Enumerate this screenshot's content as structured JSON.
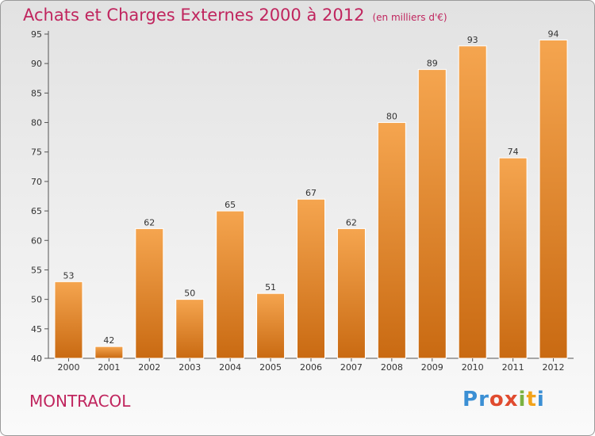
{
  "title": "Achats et Charges Externes 2000 à 2012",
  "subtitle": "(en milliers d'€)",
  "commune": "MONTRACOL",
  "logo": {
    "letters": [
      "P",
      "r",
      "o",
      "x",
      "i",
      "t",
      "i"
    ],
    "colors": [
      "#3b8fd4",
      "#3b8fd4",
      "#e04b2f",
      "#e04b2f",
      "#7bb241",
      "#f2a31b",
      "#3b8fd4"
    ]
  },
  "colors": {
    "bar_light": "#f5a54f",
    "bar_dark": "#c96a12",
    "text_accent": "#c0255e"
  },
  "chart_data": {
    "type": "bar",
    "categories": [
      "2000",
      "2001",
      "2002",
      "2003",
      "2004",
      "2005",
      "2006",
      "2007",
      "2008",
      "2009",
      "2010",
      "2011",
      "2012"
    ],
    "values": [
      53,
      42,
      62,
      50,
      65,
      51,
      67,
      62,
      80,
      89,
      93,
      74,
      94
    ],
    "ylim": [
      40,
      95
    ],
    "yticks": [
      40,
      45,
      50,
      55,
      60,
      65,
      70,
      75,
      80,
      85,
      90,
      95
    ],
    "grid": false,
    "data_labels": true
  }
}
